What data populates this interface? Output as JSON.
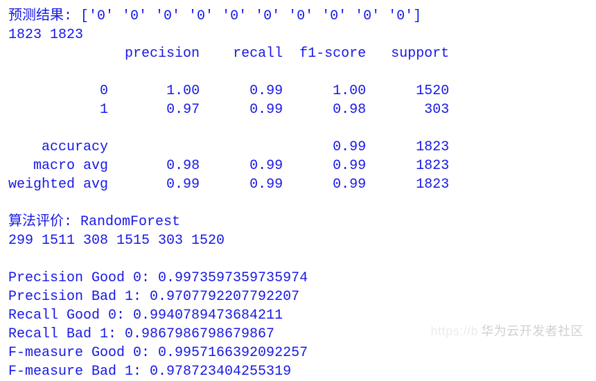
{
  "colors": {
    "text": "#1818e6",
    "background": "#ffffff",
    "watermark": "rgba(120,120,120,0.35)"
  },
  "header": {
    "prefix": "预测结果:",
    "array": "['0' '0' '0' '0' '0' '0' '0' '0' '0' '0']",
    "counts": "1823 1823"
  },
  "report": {
    "columns": [
      "precision",
      "recall",
      "f1-score",
      "support"
    ],
    "rows": [
      {
        "label": "0",
        "precision": "1.00",
        "recall": "0.99",
        "f1": "1.00",
        "support": "1520"
      },
      {
        "label": "1",
        "precision": "0.97",
        "recall": "0.99",
        "f1": "0.98",
        "support": "303"
      }
    ],
    "summary": [
      {
        "label": "accuracy",
        "precision": "",
        "recall": "",
        "f1": "0.99",
        "support": "1823"
      },
      {
        "label": "macro avg",
        "precision": "0.98",
        "recall": "0.99",
        "f1": "0.99",
        "support": "1823"
      },
      {
        "label": "weighted avg",
        "precision": "0.99",
        "recall": "0.99",
        "f1": "0.99",
        "support": "1823"
      }
    ]
  },
  "evaluation": {
    "title": "算法评价: RandomForest",
    "numbers": "299 1511 308 1515 303 1520",
    "metrics": [
      "Precision Good 0: 0.9973597359735974",
      "Precision Bad 1: 0.9707792207792207",
      "Recall Good 0: 0.9940789473684211",
      "Recall Bad 1: 0.9867986798679867",
      "F-measure Good 0: 0.9957166392092257",
      "F-measure Bad 1: 0.978723404255319"
    ]
  },
  "watermark": {
    "faint": "https://b",
    "main": "华为云开发者社区"
  }
}
